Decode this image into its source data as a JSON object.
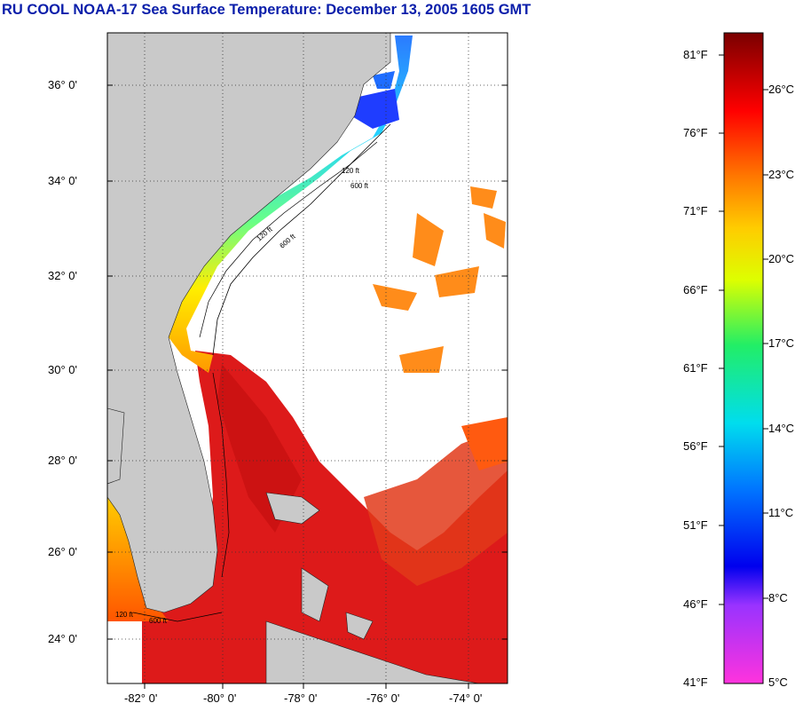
{
  "title": "RU COOL  NOAA-17  Sea Surface Temperature:  December 13, 2005 1605 GMT",
  "map": {
    "lat_labels": [
      "36° 0'",
      "34° 0'",
      "32° 0'",
      "30° 0'",
      "28° 0'",
      "26° 0'",
      "24° 0'"
    ],
    "lon_labels": [
      "-82° 0'",
      "-80° 0'",
      "-78° 0'",
      "-76° 0'",
      "-74° 0'"
    ],
    "contour_labels": [
      "120 ft",
      "600 ft",
      "120 ft",
      "600 ft",
      "120 ft",
      "600 ft"
    ]
  },
  "colorbar": {
    "fahrenheit_labels": [
      "81°F",
      "76°F",
      "71°F",
      "66°F",
      "61°F",
      "56°F",
      "51°F",
      "46°F",
      "41°F"
    ],
    "celsius_labels": [
      "26°C",
      "23°C",
      "20°C",
      "17°C",
      "14°C",
      "11°C",
      "8°C",
      "5°C"
    ],
    "colors": [
      "#8b0000",
      "#ff0000",
      "#ff8c00",
      "#ffff00",
      "#00ff00",
      "#00e5ff",
      "#0000ff",
      "#ff33cc"
    ]
  }
}
